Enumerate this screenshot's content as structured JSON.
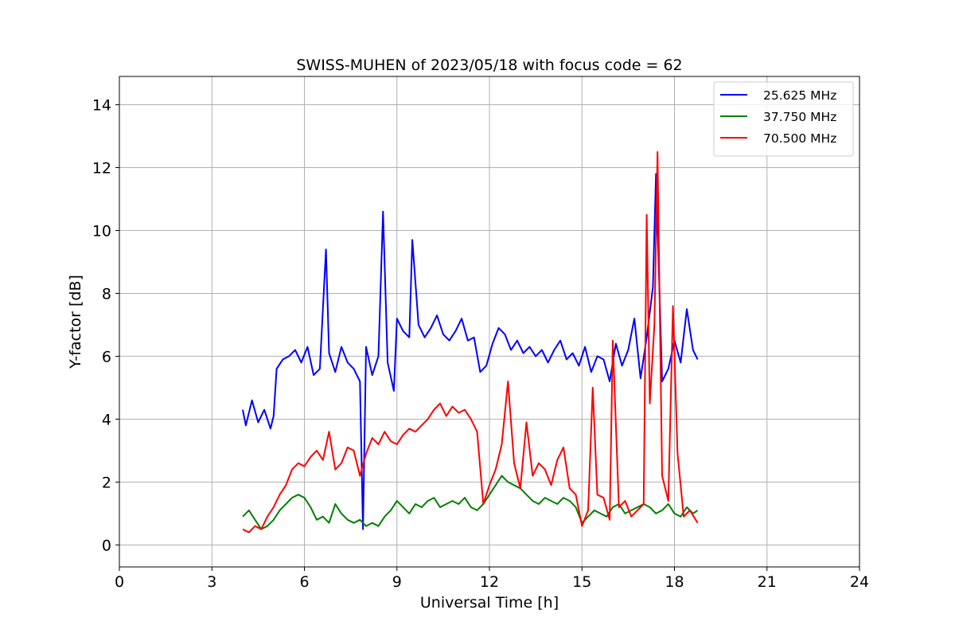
{
  "chart_data": {
    "type": "line",
    "title": "SWISS-MUHEN of 2023/05/18 with focus code = 62",
    "xlabel": "Universal Time [h]",
    "ylabel": "Y-factor [dB]",
    "xlim": [
      0,
      24
    ],
    "ylim": [
      -0.7,
      14.9
    ],
    "xticks": [
      "0",
      "3",
      "6",
      "9",
      "12",
      "15",
      "18",
      "21",
      "24"
    ],
    "yticks": [
      "0",
      "2",
      "4",
      "6",
      "8",
      "10",
      "12",
      "14"
    ],
    "grid": true,
    "legend_position": "top-right",
    "series": [
      {
        "name": "25.625 MHz",
        "color": "#0000ff",
        "x": [
          4.0,
          4.1,
          4.3,
          4.5,
          4.7,
          4.9,
          5.0,
          5.1,
          5.3,
          5.5,
          5.7,
          5.9,
          6.1,
          6.3,
          6.5,
          6.7,
          6.8,
          7.0,
          7.2,
          7.4,
          7.6,
          7.8,
          7.9,
          8.0,
          8.2,
          8.4,
          8.55,
          8.7,
          8.9,
          9.0,
          9.2,
          9.4,
          9.5,
          9.7,
          9.9,
          10.1,
          10.3,
          10.5,
          10.7,
          10.9,
          11.1,
          11.3,
          11.5,
          11.7,
          11.9,
          12.1,
          12.3,
          12.5,
          12.7,
          12.9,
          13.1,
          13.3,
          13.5,
          13.7,
          13.9,
          14.1,
          14.3,
          14.5,
          14.7,
          14.9,
          15.1,
          15.3,
          15.5,
          15.7,
          15.9,
          16.1,
          16.3,
          16.5,
          16.7,
          16.9,
          17.1,
          17.3,
          17.4,
          17.6,
          17.8,
          18.0,
          18.2,
          18.4,
          18.6,
          18.75
        ],
        "y": [
          4.3,
          3.8,
          4.6,
          3.9,
          4.3,
          3.7,
          4.1,
          5.6,
          5.9,
          6.0,
          6.2,
          5.8,
          6.3,
          5.4,
          5.6,
          9.4,
          6.1,
          5.5,
          6.3,
          5.8,
          5.6,
          5.2,
          0.5,
          6.3,
          5.4,
          6.0,
          10.6,
          5.8,
          4.9,
          7.2,
          6.8,
          6.6,
          9.7,
          7.0,
          6.6,
          6.9,
          7.3,
          6.7,
          6.5,
          6.8,
          7.2,
          6.5,
          6.6,
          5.5,
          5.7,
          6.4,
          6.9,
          6.7,
          6.2,
          6.5,
          6.1,
          6.3,
          6.0,
          6.2,
          5.8,
          6.2,
          6.5,
          5.9,
          6.1,
          5.7,
          6.3,
          5.5,
          6.0,
          5.9,
          5.2,
          6.4,
          5.7,
          6.2,
          7.2,
          5.3,
          6.6,
          8.2,
          11.8,
          5.2,
          5.6,
          6.5,
          5.8,
          7.5,
          6.2,
          5.9
        ]
      },
      {
        "name": "37.750 MHz",
        "color": "#008000",
        "x": [
          4.0,
          4.2,
          4.4,
          4.6,
          4.8,
          5.0,
          5.2,
          5.4,
          5.6,
          5.8,
          6.0,
          6.2,
          6.4,
          6.6,
          6.8,
          7.0,
          7.2,
          7.4,
          7.6,
          7.8,
          8.0,
          8.2,
          8.4,
          8.6,
          8.8,
          9.0,
          9.2,
          9.4,
          9.6,
          9.8,
          10.0,
          10.2,
          10.4,
          10.6,
          10.8,
          11.0,
          11.2,
          11.4,
          11.6,
          11.8,
          12.0,
          12.2,
          12.4,
          12.6,
          12.8,
          13.0,
          13.2,
          13.4,
          13.6,
          13.8,
          14.0,
          14.2,
          14.4,
          14.6,
          14.8,
          15.0,
          15.2,
          15.4,
          15.6,
          15.8,
          16.0,
          16.2,
          16.4,
          16.6,
          16.8,
          17.0,
          17.2,
          17.4,
          17.6,
          17.8,
          18.0,
          18.2,
          18.4,
          18.6,
          18.75
        ],
        "y": [
          0.9,
          1.1,
          0.8,
          0.5,
          0.6,
          0.8,
          1.1,
          1.3,
          1.5,
          1.6,
          1.5,
          1.2,
          0.8,
          0.9,
          0.7,
          1.3,
          1.0,
          0.8,
          0.7,
          0.8,
          0.6,
          0.7,
          0.6,
          0.9,
          1.1,
          1.4,
          1.2,
          1.0,
          1.3,
          1.2,
          1.4,
          1.5,
          1.2,
          1.3,
          1.4,
          1.3,
          1.5,
          1.2,
          1.1,
          1.3,
          1.6,
          1.9,
          2.2,
          2.0,
          1.9,
          1.8,
          1.6,
          1.4,
          1.3,
          1.5,
          1.4,
          1.3,
          1.5,
          1.4,
          1.2,
          0.7,
          0.9,
          1.1,
          1.0,
          0.9,
          1.2,
          1.3,
          1.0,
          1.1,
          1.2,
          1.3,
          1.2,
          1.0,
          1.1,
          1.3,
          1.0,
          0.9,
          1.2,
          1.0,
          1.1
        ]
      },
      {
        "name": "70.500 MHz",
        "color": "#ff0000",
        "x": [
          4.0,
          4.2,
          4.4,
          4.6,
          4.8,
          5.0,
          5.2,
          5.4,
          5.6,
          5.8,
          6.0,
          6.2,
          6.4,
          6.6,
          6.8,
          7.0,
          7.2,
          7.4,
          7.6,
          7.8,
          8.0,
          8.2,
          8.4,
          8.6,
          8.8,
          9.0,
          9.2,
          9.4,
          9.6,
          9.8,
          10.0,
          10.2,
          10.4,
          10.6,
          10.8,
          11.0,
          11.2,
          11.4,
          11.6,
          11.8,
          12.0,
          12.2,
          12.4,
          12.6,
          12.8,
          13.0,
          13.2,
          13.4,
          13.6,
          13.8,
          14.0,
          14.2,
          14.4,
          14.6,
          14.8,
          15.0,
          15.2,
          15.35,
          15.5,
          15.7,
          15.9,
          16.0,
          16.2,
          16.4,
          16.6,
          16.8,
          17.0,
          17.1,
          17.2,
          17.35,
          17.45,
          17.6,
          17.8,
          17.95,
          18.1,
          18.3,
          18.5,
          18.75
        ],
        "y": [
          0.5,
          0.4,
          0.6,
          0.5,
          0.9,
          1.2,
          1.6,
          1.9,
          2.4,
          2.6,
          2.5,
          2.8,
          3.0,
          2.7,
          3.6,
          2.4,
          2.6,
          3.1,
          3.0,
          2.2,
          2.9,
          3.4,
          3.2,
          3.6,
          3.3,
          3.2,
          3.5,
          3.7,
          3.6,
          3.8,
          4.0,
          4.3,
          4.5,
          4.1,
          4.4,
          4.2,
          4.3,
          4.0,
          3.6,
          1.3,
          1.9,
          2.4,
          3.2,
          5.2,
          2.6,
          1.8,
          3.9,
          2.2,
          2.6,
          2.4,
          1.9,
          2.7,
          3.1,
          1.8,
          1.6,
          0.6,
          1.1,
          5.0,
          1.6,
          1.5,
          0.8,
          6.5,
          1.2,
          1.4,
          0.9,
          1.1,
          1.3,
          10.5,
          4.5,
          7.0,
          12.5,
          2.2,
          1.4,
          7.6,
          2.9,
          0.9,
          1.1,
          0.7
        ]
      }
    ]
  }
}
